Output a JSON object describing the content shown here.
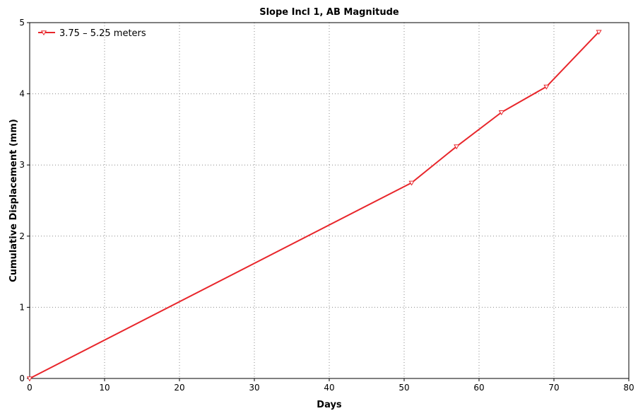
{
  "chart_data": {
    "type": "line",
    "title": "Slope Incl 1, AB Magnitude",
    "xlabel": "Days",
    "ylabel": "Cumulative Displacement (mm)",
    "xlim": [
      0,
      80
    ],
    "ylim": [
      0,
      5
    ],
    "xticks": [
      0,
      10,
      20,
      30,
      40,
      50,
      60,
      70,
      80
    ],
    "yticks": [
      0,
      1,
      2,
      3,
      4,
      5
    ],
    "grid": true,
    "legend_position": "top-left",
    "series": [
      {
        "name": "3.75 – 5.25 meters",
        "color": "#e8262b",
        "marker": "triangle-down-open",
        "x": [
          0,
          51,
          57,
          63,
          69,
          76
        ],
        "y": [
          0,
          2.75,
          3.26,
          3.74,
          4.1,
          4.87
        ]
      }
    ]
  }
}
